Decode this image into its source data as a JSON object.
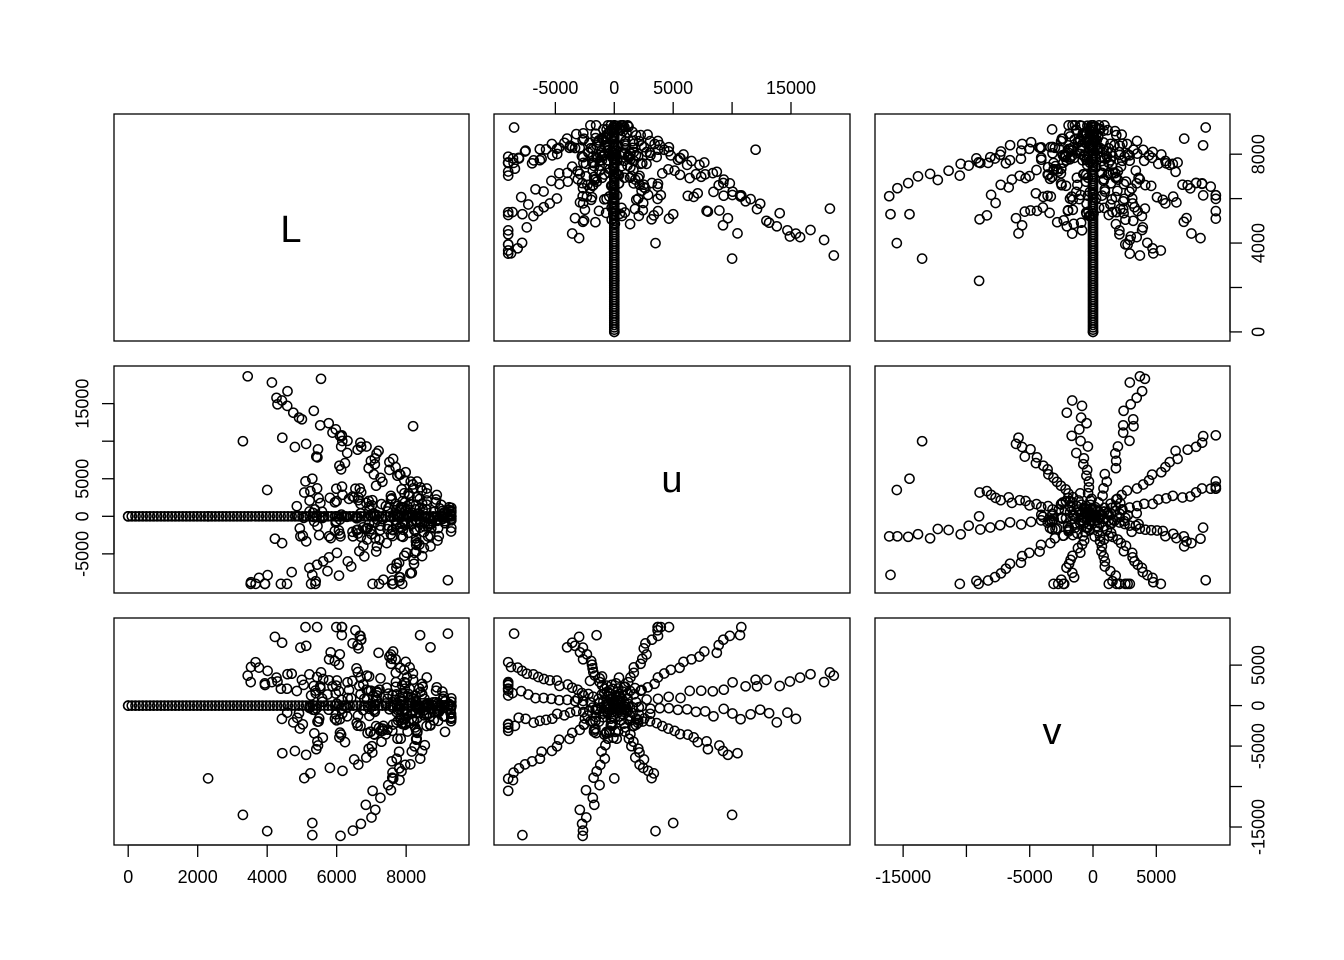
{
  "chart_data": {
    "type": "scatter",
    "subtype": "pairs",
    "variables": [
      "L",
      "u",
      "v"
    ],
    "ranges": {
      "L": [
        0,
        9400
      ],
      "u": [
        -9000,
        18800
      ],
      "v": [
        -16100,
        9700
      ]
    },
    "ticks": {
      "L": {
        "values": [
          0,
          2000,
          4000,
          6000,
          8000
        ],
        "labels": [
          "0",
          "2000",
          "4000",
          "6000",
          "8000"
        ]
      },
      "L_right": {
        "values": [
          0,
          2000,
          4000,
          6000,
          8000
        ],
        "labels": [
          "0",
          "",
          "4000",
          "",
          "8000"
        ]
      },
      "u": {
        "values": [
          -5000,
          0,
          5000,
          10000,
          15000
        ],
        "labels": [
          "-5000",
          "0",
          "5000",
          "",
          "15000"
        ]
      },
      "v": {
        "values": [
          -15000,
          -10000,
          -5000,
          0,
          5000
        ],
        "labels": [
          "-15000",
          "",
          "-5000",
          "0",
          "5000"
        ]
      }
    },
    "grid": false,
    "legend": "none",
    "point_style": "open-circle",
    "point_color": "#000000",
    "seed_points": [
      {
        "L": 0,
        "u": 0,
        "v": 0
      },
      {
        "L": 9300,
        "u": 0,
        "v": 0
      },
      {
        "L": 5550,
        "u": 18300,
        "v": 4100
      },
      {
        "L": 5300,
        "u": -7800,
        "v": -16000
      },
      {
        "L": 3300,
        "u": 10000,
        "v": -13500
      },
      {
        "L": 8200,
        "u": 12000,
        "v": 3200
      },
      {
        "L": 9200,
        "u": -8500,
        "v": 8900
      },
      {
        "L": 8400,
        "u": -1500,
        "v": 8700
      },
      {
        "L": 2300,
        "u": 0,
        "v": -9000
      },
      {
        "L": 8700,
        "u": -4000,
        "v": 7200
      },
      {
        "L": 5300,
        "u": 5000,
        "v": -14500
      },
      {
        "L": 4000,
        "u": 3500,
        "v": -15500
      }
    ]
  }
}
